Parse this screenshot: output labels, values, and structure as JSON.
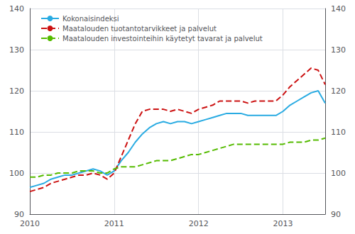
{
  "chart_data": {
    "type": "line",
    "categories": [
      "2010",
      null,
      null,
      null,
      null,
      null,
      null,
      null,
      null,
      null,
      null,
      null,
      "2011",
      null,
      null,
      null,
      null,
      null,
      null,
      null,
      null,
      null,
      null,
      null,
      "2012",
      null,
      null,
      null,
      null,
      null,
      null,
      null,
      null,
      null,
      null,
      null,
      "2013",
      null,
      null,
      null,
      null,
      null,
      null
    ],
    "series": [
      {
        "name": "Kokonaisindeksi",
        "color": "#29abe2",
        "line_style": "solid",
        "values": [
          96.5,
          97.0,
          97.5,
          98.5,
          99.0,
          99.5,
          99.5,
          100.0,
          100.5,
          101.0,
          100.5,
          99.5,
          100.5,
          103.0,
          105.0,
          107.5,
          109.5,
          111.0,
          112.0,
          112.5,
          112.0,
          112.5,
          112.5,
          112.0,
          112.5,
          113.0,
          113.5,
          114.0,
          114.5,
          114.5,
          114.5,
          114.0,
          114.0,
          114.0,
          114.0,
          114.0,
          115.0,
          116.5,
          117.5,
          118.5,
          119.5,
          120.0,
          117.0
        ]
      },
      {
        "name": "Maatalouden tuotantotarvikkeet ja palvelut",
        "color": "#cc1111",
        "line_style": "dashed",
        "values": [
          95.5,
          96.0,
          96.5,
          97.5,
          98.0,
          98.5,
          99.0,
          99.5,
          99.5,
          100.0,
          99.5,
          98.5,
          100.0,
          104.0,
          108.0,
          112.0,
          115.0,
          115.5,
          115.5,
          115.5,
          115.0,
          115.5,
          115.0,
          114.5,
          115.5,
          116.0,
          116.5,
          117.5,
          117.5,
          117.5,
          117.5,
          117.0,
          117.5,
          117.5,
          117.5,
          117.5,
          119.0,
          121.0,
          122.5,
          124.0,
          125.5,
          125.0,
          121.5
        ]
      },
      {
        "name": "Maatalouden investointeihin käytetyt tavarat ja palvelut",
        "color": "#55bb00",
        "line_style": "dashed",
        "values": [
          99.0,
          99.0,
          99.5,
          99.5,
          100.0,
          100.0,
          100.0,
          100.5,
          100.5,
          100.5,
          100.0,
          100.0,
          101.0,
          101.5,
          101.5,
          101.5,
          102.0,
          102.5,
          103.0,
          103.0,
          103.0,
          103.5,
          104.0,
          104.5,
          104.5,
          105.0,
          105.5,
          106.0,
          106.5,
          107.0,
          107.0,
          107.0,
          107.0,
          107.0,
          107.0,
          107.0,
          107.0,
          107.5,
          107.5,
          107.5,
          108.0,
          108.0,
          108.5
        ]
      }
    ],
    "ylim": [
      90,
      140
    ],
    "yticks": [
      90,
      100,
      110,
      120,
      130,
      140
    ],
    "y2lim": [
      90,
      140
    ],
    "y2ticks": [
      90,
      100,
      110,
      120,
      130,
      140
    ],
    "grid": true,
    "legend": "upper left"
  }
}
